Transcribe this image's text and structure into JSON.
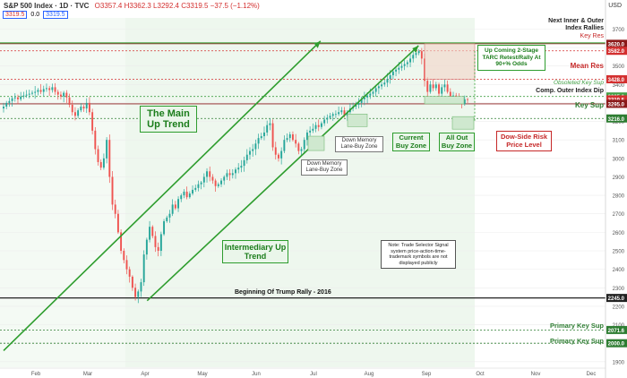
{
  "header": {
    "symbol": "S&P 500 Index · 1D · TVC",
    "ohlc": "O3357.4 H3362.3 L3292.4 C3319.5 −37.5 (−1.12%)",
    "price_pill": "3319.5",
    "spread": "0.0",
    "price_pill2": "3319.5",
    "currency": "USD"
  },
  "annotations": {
    "main_trend": "The Main Up Trend",
    "intermediary_trend": "Intermediary Up Trend",
    "trump_rally": "Beginning Of Trump Rally - 2016",
    "down_memory_1": "Down Memory Lane-Buy Zone",
    "down_memory_2": "Down Memory Lane-Buy Zone",
    "current_buy": "Current Buy Zone",
    "all_out_buy": "All Out Buy Zone",
    "up_coming": "Up Coming 2-Stage TARC Retest/Rally At 90+% Odds",
    "dow_side_risk": "Dow-Side Risk Price Level",
    "next_inner_outer": "Next Inner & Outer Index Rallies",
    "key_res": "Key Res",
    "mean_res": "Mean Res",
    "obsoleted_key_sup": "Obsoleted Key Sup",
    "comp_outer_index_dip": "Comp. Outer Index Dip",
    "key_sup": "Key Sup",
    "primary_key_sup_1": "Primary Key Sup",
    "primary_key_sup_2": "Primary Key Sup",
    "note": "Note: Trade Selector Signal system price-action-time-trademark symbols are not displayed publicly"
  },
  "chart_data": {
    "type": "candlestick",
    "title": "S&P 500 Index · 1D · TVC",
    "x_labels": [
      "Feb",
      "Mar",
      "Apr",
      "May",
      "Jun",
      "Jul",
      "Aug",
      "Sep",
      "Oct",
      "Nov",
      "Dec"
    ],
    "y_ticks": [
      1900,
      2000,
      2100,
      2200,
      2300,
      2400,
      2500,
      2600,
      2700,
      2800,
      2900,
      3000,
      3100,
      3200,
      3300,
      3400,
      3500,
      3600,
      3700
    ],
    "ylim": [
      1870,
      3760
    ],
    "levels": [
      {
        "label": "Key Res",
        "value": 3582.0,
        "color": "#d32f2f"
      },
      {
        "label": "Next Inner & Outer Index Rallies",
        "value": 3620.0,
        "color": "#8b1a1a"
      },
      {
        "label": "Mean Res",
        "value": 3428.0,
        "color": "#d32f2f"
      },
      {
        "label": "Obsoleted Key Sup",
        "value": 3335.0,
        "color": "#43a047"
      },
      {
        "label": "Comp. Outer Index Dip",
        "value": 3295.0,
        "color": "#8b1a1a"
      },
      {
        "label": "Key Sup",
        "value": 3216.0,
        "color": "#2e7d32"
      },
      {
        "label": "Beginning Of Trump Rally - 2016",
        "value": 2245.0,
        "color": "#222222"
      },
      {
        "label": "Primary Key Sup",
        "value": 2071.6,
        "color": "#2e7d32"
      },
      {
        "label": "Primary Key Sup",
        "value": 2000.0,
        "color": "#2e7d32"
      }
    ],
    "price_tags": [
      {
        "value": 3620.0,
        "color": "#8b1a1a"
      },
      {
        "value": 3582.0,
        "color": "#d32f2f"
      },
      {
        "value": 3428.0,
        "color": "#d32f2f"
      },
      {
        "value": 3335.0,
        "color": "#43a047"
      },
      {
        "value": 3319.5,
        "color": "#d32f2f"
      },
      {
        "value": 3295.0,
        "color": "#8b1a1a"
      },
      {
        "value": 3216.0,
        "color": "#2e7d32"
      },
      {
        "value": 2245.0,
        "color": "#222222"
      },
      {
        "value": 2071.6,
        "color": "#2e7d32"
      },
      {
        "value": 2000.0,
        "color": "#2e7d32"
      }
    ],
    "closes": [
      3280,
      3300,
      3310,
      3325,
      3330,
      3320,
      3335,
      3340,
      3345,
      3350,
      3355,
      3360,
      3370,
      3360,
      3375,
      3380,
      3370,
      3385,
      3360,
      3345,
      3335,
      3355,
      3330,
      3290,
      3250,
      3230,
      3260,
      3280,
      3270,
      3300,
      3250,
      3150,
      3050,
      2980,
      2950,
      3000,
      3100,
      2900,
      2750,
      2700,
      2600,
      2500,
      2450,
      2400,
      2360,
      2300,
      2250,
      2280,
      2330,
      2480,
      2560,
      2630,
      2580,
      2520,
      2500,
      2590,
      2660,
      2680,
      2700,
      2750,
      2730,
      2780,
      2800,
      2820,
      2790,
      2810,
      2830,
      2840,
      2860,
      2870,
      2900,
      2930,
      2900,
      2880,
      2850,
      2860,
      2880,
      2900,
      2920,
      2910,
      2920,
      2940,
      2950,
      2960,
      2990,
      3020,
      3040,
      3050,
      3080,
      3110,
      3120,
      3140,
      3180,
      3190,
      3060,
      3020,
      3000,
      3040,
      3100,
      3110,
      3130,
      3100,
      3080,
      3040,
      3050,
      3100,
      3140,
      3150,
      3160,
      3180,
      3170,
      3190,
      3210,
      3220,
      3230,
      3240,
      3240,
      3250,
      3260,
      3230,
      3250,
      3270,
      3280,
      3290,
      3300,
      3320,
      3330,
      3340,
      3350,
      3360,
      3380,
      3390,
      3400,
      3410,
      3430,
      3450,
      3470,
      3480,
      3490,
      3500,
      3510,
      3520,
      3540,
      3560,
      3570,
      3580,
      3540,
      3420,
      3360,
      3400,
      3380,
      3400,
      3350,
      3385,
      3400,
      3360,
      3320,
      3340,
      3330,
      3310,
      3295,
      3320,
      3319.5
    ],
    "main_trend_line": {
      "from": [
        "2020-01-01",
        1960
      ],
      "to": [
        "2020-06-30",
        3635
      ]
    },
    "intermediary_trend_line": {
      "from": [
        "2020-03-23",
        2230
      ],
      "to": [
        "2020-08-25",
        3610
      ]
    }
  }
}
